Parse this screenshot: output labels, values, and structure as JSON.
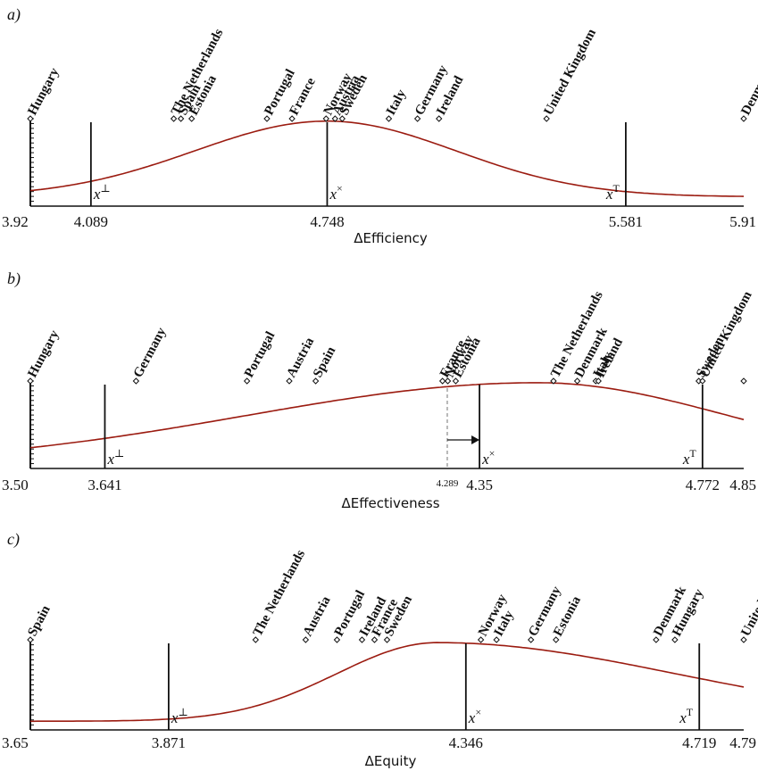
{
  "colors": {
    "curve": "#9b1b10",
    "axis": "#111111",
    "guide": "#8a8a8a"
  },
  "chart_data": [
    {
      "type": "scatter",
      "panel_label": "a)",
      "xlabel": "ΔEfficiency",
      "xlim": [
        3.92,
        5.91
      ],
      "ticks": [
        {
          "value": 3.92,
          "label": "3.92",
          "anchor": "start"
        },
        {
          "value": 4.089,
          "label": "4.089",
          "anchor": "middle"
        },
        {
          "value": 4.748,
          "label": "4.748",
          "anchor": "middle"
        },
        {
          "value": 5.581,
          "label": "5.581",
          "anchor": "middle"
        },
        {
          "value": 5.91,
          "label": "5.91",
          "anchor": "end"
        }
      ],
      "markers": [
        {
          "value": 4.089,
          "symbol": "x",
          "sup": "⊥"
        },
        {
          "value": 4.748,
          "symbol": "x",
          "sup": "×"
        },
        {
          "value": 5.581,
          "symbol": "x",
          "sup": "T"
        }
      ],
      "countries": [
        {
          "name": "Hungary",
          "value": 3.92
        },
        {
          "name": "The Netherlands",
          "value": 4.32
        },
        {
          "name": "Spain",
          "value": 4.34
        },
        {
          "name": "Estonia",
          "value": 4.37
        },
        {
          "name": "Portugal",
          "value": 4.58
        },
        {
          "name": "France",
          "value": 4.65
        },
        {
          "name": "Norway",
          "value": 4.745
        },
        {
          "name": "Austria",
          "value": 4.77
        },
        {
          "name": "Sweden",
          "value": 4.79
        },
        {
          "name": "Italy",
          "value": 4.92
        },
        {
          "name": "Germany",
          "value": 5.0
        },
        {
          "name": "Ireland",
          "value": 5.06
        },
        {
          "name": "United Kingdom",
          "value": 5.36
        },
        {
          "name": "Denmark",
          "value": 5.91
        }
      ],
      "curve": {
        "peak": 4.748,
        "sigma_left": 0.37,
        "sigma_right": 0.36,
        "floor": 0.08,
        "amplitude": 0.82
      }
    },
    {
      "type": "scatter",
      "panel_label": "b)",
      "xlabel": "ΔEffectiveness",
      "xlim": [
        3.5,
        4.85
      ],
      "ticks": [
        {
          "value": 3.5,
          "label": "3.50",
          "anchor": "start"
        },
        {
          "value": 3.641,
          "label": "3.641",
          "anchor": "middle"
        },
        {
          "value": 4.289,
          "label": "4.289",
          "anchor": "middle",
          "small": true
        },
        {
          "value": 4.35,
          "label": "4.35",
          "anchor": "middle"
        },
        {
          "value": 4.772,
          "label": "4.772",
          "anchor": "middle"
        },
        {
          "value": 4.85,
          "label": "4.85",
          "anchor": "end"
        }
      ],
      "markers": [
        {
          "value": 3.641,
          "symbol": "x",
          "sup": "⊥"
        },
        {
          "value": 4.35,
          "symbol": "x",
          "sup": "×"
        },
        {
          "value": 4.772,
          "symbol": "x",
          "sup": "T"
        }
      ],
      "shift": {
        "from": 4.289,
        "to": 4.35
      },
      "countries": [
        {
          "name": "Hungary",
          "value": 3.5
        },
        {
          "name": "Germany",
          "value": 3.7
        },
        {
          "name": "Portugal",
          "value": 3.91
        },
        {
          "name": "Austria",
          "value": 3.99
        },
        {
          "name": "Spain",
          "value": 4.04
        },
        {
          "name": "France",
          "value": 4.28
        },
        {
          "name": "Norway",
          "value": 4.29
        },
        {
          "name": "Estonia",
          "value": 4.305
        },
        {
          "name": "The Netherlands",
          "value": 4.49
        },
        {
          "name": "Denmark",
          "value": 4.535
        },
        {
          "name": "Italy",
          "value": 4.57
        },
        {
          "name": "Ireland",
          "value": 4.575
        },
        {
          "name": "Sweden",
          "value": 4.765
        },
        {
          "name": "United Kingdom",
          "value": 4.772
        },
        {
          "name": "",
          "value": 4.85
        }
      ],
      "curve": {
        "peak": 4.46,
        "sigma_left": 0.55,
        "sigma_right": 0.36,
        "floor": 0.0,
        "amplitude": 0.86
      }
    },
    {
      "type": "scatter",
      "panel_label": "c)",
      "xlabel": "ΔEquity",
      "xlim": [
        3.65,
        4.79
      ],
      "ticks": [
        {
          "value": 3.65,
          "label": "3.65",
          "anchor": "start"
        },
        {
          "value": 3.871,
          "label": "3.871",
          "anchor": "middle"
        },
        {
          "value": 4.346,
          "label": "4.346",
          "anchor": "middle"
        },
        {
          "value": 4.719,
          "label": "4.719",
          "anchor": "middle"
        },
        {
          "value": 4.79,
          "label": "4.79",
          "anchor": "end"
        }
      ],
      "markers": [
        {
          "value": 3.871,
          "symbol": "x",
          "sup": "⊥"
        },
        {
          "value": 4.346,
          "symbol": "x",
          "sup": "×"
        },
        {
          "value": 4.719,
          "symbol": "x",
          "sup": "T"
        }
      ],
      "countries": [
        {
          "name": "Spain",
          "value": 3.65
        },
        {
          "name": "The Netherlands",
          "value": 4.01
        },
        {
          "name": "Austria",
          "value": 4.09
        },
        {
          "name": "Portugal",
          "value": 4.14
        },
        {
          "name": "Ireland",
          "value": 4.18
        },
        {
          "name": "France",
          "value": 4.2
        },
        {
          "name": "Sweden",
          "value": 4.22
        },
        {
          "name": "Norway",
          "value": 4.37
        },
        {
          "name": "Italy",
          "value": 4.395
        },
        {
          "name": "Germany",
          "value": 4.45
        },
        {
          "name": "Estonia",
          "value": 4.49
        },
        {
          "name": "Denmark",
          "value": 4.65
        },
        {
          "name": "Hungary",
          "value": 4.68
        },
        {
          "name": "United Kingdom",
          "value": 4.79
        }
      ],
      "curve": {
        "peak": 4.3,
        "sigma_left": 0.16,
        "sigma_right": 0.38,
        "floor": 0.07,
        "amplitude": 0.78
      }
    }
  ]
}
